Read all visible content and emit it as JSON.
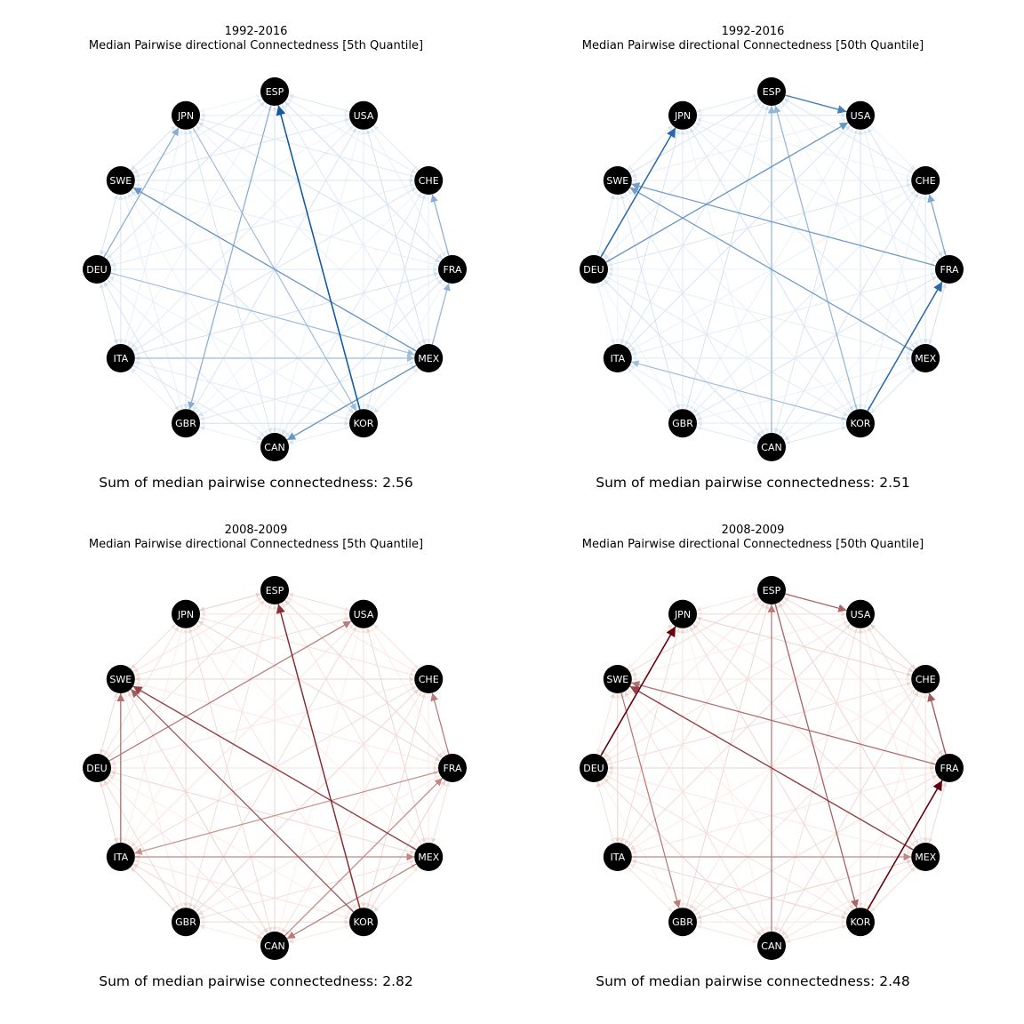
{
  "nodes": [
    "ESP",
    "USA",
    "CHE",
    "FRA",
    "MEX",
    "KOR",
    "CAN",
    "GBR",
    "ITA",
    "DEU",
    "SWE",
    "JPN"
  ],
  "colors": {
    "node_fill": "#000000",
    "node_text": "#ffffff",
    "blues_light": "#deebf7",
    "blues_dark": "#08519c",
    "reds_light": "#fee0d2",
    "reds_dark": "#67000d"
  },
  "panels": [
    {
      "period": "1992-2016",
      "title": "Median Pairwise directional Connectedness [5th Quantile]",
      "sum_text": "Sum of median pairwise connectedness: 2.56",
      "colormap": "blues",
      "strong_edges": [
        {
          "from": "KOR",
          "to": "ESP",
          "weight": 0.95
        },
        {
          "from": "MEX",
          "to": "SWE",
          "weight": 0.55
        },
        {
          "from": "MEX",
          "to": "CAN",
          "weight": 0.55
        },
        {
          "from": "ESP",
          "to": "GBR",
          "weight": 0.4
        },
        {
          "from": "DEU",
          "to": "JPN",
          "weight": 0.4
        },
        {
          "from": "FRA",
          "to": "CHE",
          "weight": 0.4
        },
        {
          "from": "MEX",
          "to": "FRA",
          "weight": 0.35
        },
        {
          "from": "DEU",
          "to": "MEX",
          "weight": 0.3
        },
        {
          "from": "ITA",
          "to": "MEX",
          "weight": 0.3
        },
        {
          "from": "JPN",
          "to": "KOR",
          "weight": 0.3
        }
      ]
    },
    {
      "period": "1992-2016",
      "title": "Median Pairwise directional Connectedness [50th Quantile]",
      "sum_text": "Sum of median pairwise connectedness: 2.51",
      "colormap": "blues",
      "strong_edges": [
        {
          "from": "DEU",
          "to": "JPN",
          "weight": 0.85
        },
        {
          "from": "KOR",
          "to": "FRA",
          "weight": 0.85
        },
        {
          "from": "ESP",
          "to": "USA",
          "weight": 0.7
        },
        {
          "from": "DEU",
          "to": "USA",
          "weight": 0.55
        },
        {
          "from": "FRA",
          "to": "SWE",
          "weight": 0.5
        },
        {
          "from": "MEX",
          "to": "SWE",
          "weight": 0.5
        },
        {
          "from": "FRA",
          "to": "CHE",
          "weight": 0.45
        },
        {
          "from": "CAN",
          "to": "ESP",
          "weight": 0.35
        },
        {
          "from": "KOR",
          "to": "ESP",
          "weight": 0.35
        },
        {
          "from": "KOR",
          "to": "ITA",
          "weight": 0.3
        }
      ]
    },
    {
      "period": "2008-2009",
      "title": "Median Pairwise directional Connectedness [5th Quantile]",
      "sum_text": "Sum of median pairwise connectedness: 2.82",
      "colormap": "reds",
      "strong_edges": [
        {
          "from": "KOR",
          "to": "ESP",
          "weight": 0.8
        },
        {
          "from": "MEX",
          "to": "SWE",
          "weight": 0.7
        },
        {
          "from": "KOR",
          "to": "SWE",
          "weight": 0.6
        },
        {
          "from": "ITA",
          "to": "SWE",
          "weight": 0.5
        },
        {
          "from": "DEU",
          "to": "USA",
          "weight": 0.45
        },
        {
          "from": "MEX",
          "to": "CAN",
          "weight": 0.45
        },
        {
          "from": "FRA",
          "to": "CHE",
          "weight": 0.45
        },
        {
          "from": "ITA",
          "to": "MEX",
          "weight": 0.4
        },
        {
          "from": "CAN",
          "to": "FRA",
          "weight": 0.4
        },
        {
          "from": "FRA",
          "to": "ITA",
          "weight": 0.35
        }
      ]
    },
    {
      "period": "2008-2009",
      "title": "Median Pairwise directional Connectedness [50th Quantile]",
      "sum_text": "Sum of median pairwise connectedness: 2.48",
      "colormap": "reds",
      "strong_edges": [
        {
          "from": "DEU",
          "to": "JPN",
          "weight": 1.0
        },
        {
          "from": "KOR",
          "to": "FRA",
          "weight": 1.0
        },
        {
          "from": "MEX",
          "to": "SWE",
          "weight": 0.7
        },
        {
          "from": "FRA",
          "to": "CHE",
          "weight": 0.6
        },
        {
          "from": "ESP",
          "to": "USA",
          "weight": 0.55
        },
        {
          "from": "ESP",
          "to": "KOR",
          "weight": 0.55
        },
        {
          "from": "FRA",
          "to": "SWE",
          "weight": 0.5
        },
        {
          "from": "CAN",
          "to": "ESP",
          "weight": 0.45
        },
        {
          "from": "SWE",
          "to": "GBR",
          "weight": 0.45
        },
        {
          "from": "ITA",
          "to": "MEX",
          "weight": 0.4
        }
      ]
    }
  ]
}
